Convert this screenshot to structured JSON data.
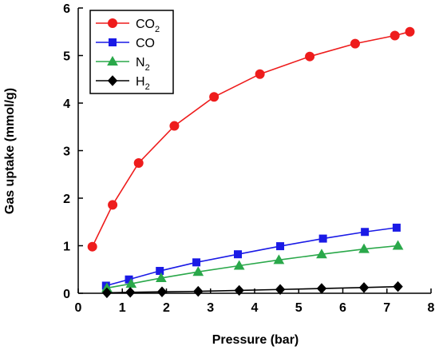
{
  "chart_data": {
    "type": "line",
    "title": "",
    "xlabel": "Pressure (bar)",
    "ylabel": "Gas uptake (mmol/g)",
    "xlim": [
      0,
      8
    ],
    "ylim": [
      0,
      6
    ],
    "xticks": [
      "0",
      "1",
      "2",
      "3",
      "4",
      "5",
      "6",
      "7",
      "8"
    ],
    "yticks": [
      "0",
      "1",
      "2",
      "3",
      "4",
      "5",
      "6"
    ],
    "grid": false,
    "legend_position": "top-left",
    "series": [
      {
        "name": "CO2",
        "label_main": "CO",
        "label_sub": "2",
        "color": "#ee1c1c",
        "marker": "circle",
        "x": [
          0.32,
          0.78,
          1.37,
          2.18,
          3.08,
          4.12,
          5.25,
          6.28,
          7.18,
          7.52
        ],
        "y": [
          0.98,
          1.86,
          2.74,
          3.52,
          4.13,
          4.61,
          4.98,
          5.25,
          5.42,
          5.5
        ]
      },
      {
        "name": "CO",
        "label_main": "CO",
        "label_sub": "",
        "color": "#1a1ae6",
        "marker": "square",
        "x": [
          0.63,
          1.15,
          1.85,
          2.68,
          3.62,
          4.58,
          5.55,
          6.5,
          7.22
        ],
        "y": [
          0.16,
          0.29,
          0.47,
          0.65,
          0.82,
          0.99,
          1.15,
          1.29,
          1.38
        ]
      },
      {
        "name": "N2",
        "label_main": "N",
        "label_sub": "2",
        "color": "#2aa84a",
        "marker": "triangle",
        "x": [
          0.65,
          1.2,
          1.88,
          2.72,
          3.65,
          4.55,
          5.52,
          6.48,
          7.25
        ],
        "y": [
          0.11,
          0.2,
          0.32,
          0.45,
          0.58,
          0.7,
          0.82,
          0.93,
          1.0
        ]
      },
      {
        "name": "H2",
        "label_main": "H",
        "label_sub": "2",
        "color": "#000000",
        "marker": "diamond",
        "x": [
          0.65,
          1.18,
          1.9,
          2.72,
          3.65,
          4.58,
          5.52,
          6.48,
          7.25
        ],
        "y": [
          0.01,
          0.02,
          0.03,
          0.04,
          0.06,
          0.08,
          0.1,
          0.12,
          0.14
        ]
      }
    ]
  }
}
